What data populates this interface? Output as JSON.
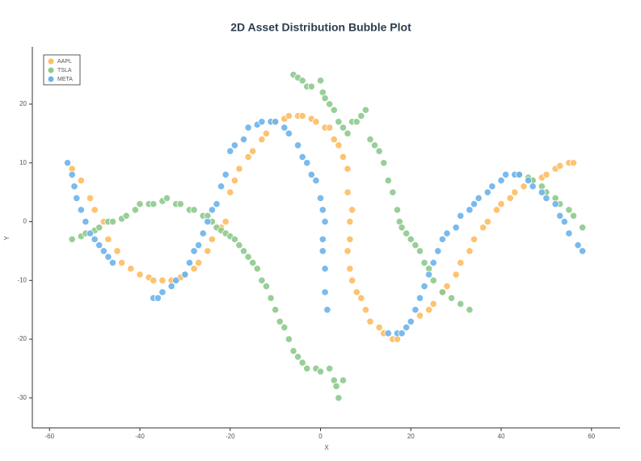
{
  "chart_data": {
    "type": "scatter",
    "title": "2D Asset Distribution Bubble Plot",
    "x_label": "X",
    "y_label": "Y",
    "xlim": [
      -63.8,
      66.3
    ],
    "ylim": [
      -35.1,
      29.75
    ],
    "xticks": [
      -60,
      -40,
      -20,
      0,
      20,
      40,
      60
    ],
    "yticks": [
      -30,
      -20,
      -10,
      0,
      10,
      20
    ],
    "grid": false,
    "legend": "upper left",
    "series": [
      {
        "name": "AAPL",
        "color": "#fdbd62",
        "x": [
          -55,
          -53,
          -51,
          -50,
          -48,
          -47,
          -45,
          -44,
          -42,
          -40,
          -38,
          -37,
          -35,
          -33,
          -31,
          -30,
          -28,
          -27,
          -25,
          -24,
          -22,
          -21,
          -20,
          -19,
          -18,
          -16,
          -15,
          -13,
          -12,
          -10,
          -8,
          -7,
          -5,
          -4,
          -2,
          -1,
          1,
          2,
          3,
          4,
          5,
          6,
          6,
          7,
          6.5,
          6.5,
          6,
          6.5,
          7,
          8,
          9,
          10,
          11,
          13,
          14,
          16,
          17,
          22,
          24,
          25,
          27,
          28,
          30,
          31,
          33,
          34,
          36,
          37,
          39,
          40,
          42,
          43,
          45,
          47,
          49,
          50,
          52,
          53,
          55,
          56
        ],
        "values": [
          9,
          7,
          4,
          2,
          0,
          -3,
          -5,
          -7,
          -8,
          -9,
          -9.5,
          -10,
          -10,
          -10,
          -9.5,
          -9,
          -8,
          -7,
          -5,
          -3,
          -1,
          0,
          5,
          7,
          9,
          11,
          12,
          14,
          15,
          17,
          17.5,
          18,
          18,
          18,
          17.5,
          17,
          16,
          16,
          14,
          13,
          11,
          9,
          5,
          2,
          0,
          -3,
          -5,
          -8,
          -10,
          -12,
          -13,
          -15,
          -17,
          -18,
          -19,
          -20,
          -20,
          -16,
          -15,
          -14,
          -12,
          -11,
          -9,
          -7,
          -5,
          -3,
          -1,
          0,
          2,
          3,
          4,
          5,
          6,
          7,
          7.5,
          8,
          9,
          9.5,
          10,
          10
        ]
      },
      {
        "name": "TSLA",
        "color": "#8dca8d",
        "x": [
          -55,
          -53,
          -52,
          -50,
          -49,
          -47,
          -46,
          -44,
          -43,
          -41,
          -40,
          -38,
          -37,
          -35,
          -34,
          -32,
          -31,
          -29,
          -28,
          -26,
          -25,
          -24,
          -23,
          -22,
          -21,
          -20,
          -19,
          -18,
          -17,
          -16,
          -15,
          -14,
          -13,
          -12,
          -11,
          -10,
          -9,
          -8,
          -7,
          -6,
          -5,
          -4,
          -3,
          -1,
          0,
          2,
          3,
          3.5,
          4,
          5,
          -6,
          -5,
          -4,
          -3,
          -2,
          0,
          0.5,
          1,
          2,
          3,
          4,
          5,
          6,
          7,
          8,
          9,
          10,
          11,
          12,
          13,
          14,
          15,
          16,
          17,
          17.5,
          18,
          19,
          20,
          21,
          22,
          23,
          24,
          25,
          27,
          29,
          31,
          33,
          44,
          46,
          47,
          49,
          50,
          52,
          53,
          55,
          56,
          58
        ],
        "values": [
          -3,
          -2.5,
          -2,
          -1.5,
          -1,
          0,
          0,
          0.5,
          1,
          2,
          3,
          3,
          3,
          3.5,
          4,
          3,
          3,
          2,
          2,
          1,
          1,
          0,
          -1,
          -1.5,
          -2,
          -2.5,
          -3,
          -4,
          -5,
          -6,
          -7,
          -8,
          -10,
          -11,
          -13,
          -15,
          -17,
          -18,
          -20,
          -22,
          -23,
          -24,
          -25,
          -25,
          -25.5,
          -25,
          -27,
          -28,
          -30,
          -27,
          25,
          24.5,
          24,
          23,
          23,
          24,
          22,
          21,
          20,
          19,
          17,
          16,
          15,
          17,
          17,
          18,
          19,
          14,
          13,
          12,
          10,
          7,
          5,
          2,
          0,
          -1,
          -2,
          -3,
          -4,
          -5,
          -7,
          -8,
          -10,
          -12,
          -13,
          -14,
          -15,
          8,
          7.5,
          7,
          6,
          5,
          4,
          3,
          2,
          1,
          -1
        ]
      },
      {
        "name": "META",
        "color": "#6cb3ec",
        "x": [
          -56,
          -55,
          -54.5,
          -54,
          -53,
          -52,
          -51,
          -50,
          -49,
          -48,
          -47,
          -46,
          -37,
          -36,
          -35,
          -33,
          -32,
          -30,
          -29,
          -28,
          -27,
          -26,
          -25,
          -24,
          -23,
          -22,
          -21,
          -20,
          -19,
          -17,
          -16,
          -14,
          -13,
          -11,
          -10,
          -8,
          -7,
          -5,
          -4,
          -3,
          -2,
          -1,
          0,
          0.5,
          1,
          0.5,
          0.5,
          1,
          1,
          1.5,
          15,
          17,
          18,
          19,
          20,
          21,
          22,
          23,
          24,
          25,
          26,
          27,
          28,
          30,
          31,
          33,
          34,
          35,
          37,
          38,
          40,
          41,
          43,
          44,
          46,
          47,
          49,
          50,
          52,
          53,
          54,
          55,
          57,
          58
        ],
        "values": [
          10,
          8,
          6,
          4,
          2,
          0,
          -2,
          -3,
          -4,
          -5,
          -6,
          -7,
          -13,
          -13,
          -12,
          -11,
          -10,
          -9,
          -7,
          -5,
          -4,
          -2,
          0,
          2,
          3,
          6,
          8,
          12,
          13,
          14,
          16,
          16.5,
          17,
          17,
          17,
          16,
          15,
          13,
          11,
          10,
          8,
          7,
          4,
          2,
          0,
          -3,
          -5,
          -8,
          -12,
          -15,
          -19,
          -19,
          -19,
          -18,
          -17,
          -15,
          -13,
          -11,
          -9,
          -7,
          -5,
          -3,
          -2,
          -1,
          1,
          2,
          3,
          4,
          5,
          6,
          7,
          8,
          8,
          8,
          7,
          6,
          5,
          4,
          3,
          1,
          0,
          -2,
          -4,
          -5
        ]
      }
    ]
  }
}
